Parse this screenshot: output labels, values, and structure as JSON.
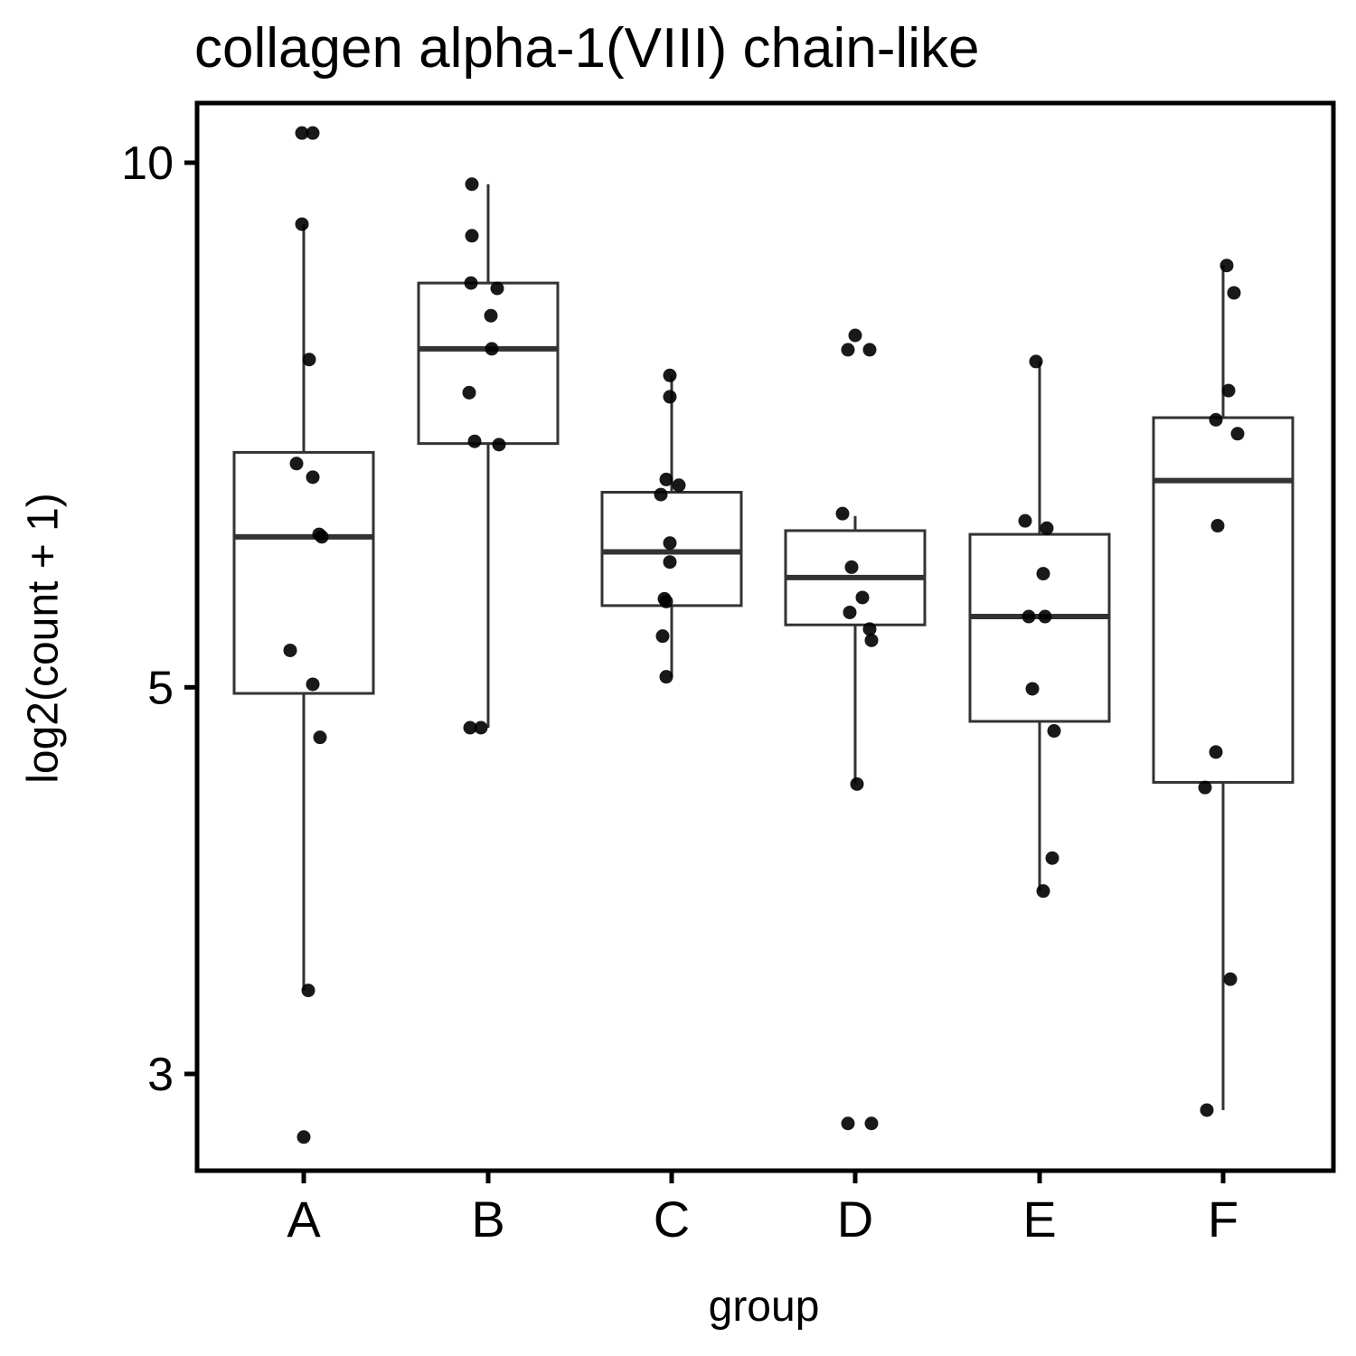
{
  "chart_data": {
    "type": "box",
    "title": "collagen alpha-1(VIII) chain-like",
    "xlabel": "group",
    "ylabel": "log2(count + 1)",
    "y_scale": "log",
    "ylim": [
      2.64,
      10.82
    ],
    "yticks": [
      3,
      5,
      10
    ],
    "grid": false,
    "legend": "none",
    "categories": [
      "A",
      "B",
      "C",
      "D",
      "E",
      "F"
    ],
    "boxes": [
      {
        "group": "A",
        "whisker_low": 3.35,
        "q1": 4.96,
        "median": 6.1,
        "q3": 6.82,
        "whisker_high": 9.22
      },
      {
        "group": "B",
        "whisker_low": 4.74,
        "q1": 6.9,
        "median": 7.82,
        "q3": 8.53,
        "whisker_high": 9.72
      },
      {
        "group": "C",
        "whisker_low": 5.07,
        "q1": 5.57,
        "median": 5.98,
        "q3": 6.47,
        "whisker_high": 7.55
      },
      {
        "group": "D",
        "whisker_low": 4.4,
        "q1": 5.43,
        "median": 5.78,
        "q3": 6.15,
        "whisker_high": 6.27
      },
      {
        "group": "E",
        "whisker_low": 3.82,
        "q1": 4.78,
        "median": 5.49,
        "q3": 6.12,
        "whisker_high": 7.69
      },
      {
        "group": "F",
        "whisker_low": 2.86,
        "q1": 4.41,
        "median": 6.57,
        "q3": 7.14,
        "whisker_high": 8.73
      }
    ],
    "points": [
      {
        "group": "A",
        "values": [
          10.4,
          10.4,
          9.22,
          7.71,
          6.72,
          6.6,
          6.12,
          6.1,
          5.25,
          5.02,
          4.68,
          3.35,
          2.76
        ]
      },
      {
        "group": "B",
        "values": [
          9.72,
          9.08,
          8.47,
          8.53,
          8.17,
          7.82,
          7.38,
          6.92,
          6.89,
          4.74,
          4.74
        ]
      },
      {
        "group": "C",
        "values": [
          7.55,
          7.34,
          6.58,
          6.53,
          6.45,
          6.05,
          5.9,
          5.62,
          5.6,
          5.35,
          5.07
        ]
      },
      {
        "group": "D",
        "values": [
          7.96,
          7.81,
          7.81,
          6.29,
          5.86,
          5.63,
          5.52,
          5.4,
          5.32,
          4.4,
          2.81,
          2.81
        ]
      },
      {
        "group": "E",
        "values": [
          7.69,
          6.23,
          6.17,
          5.81,
          5.49,
          5.49,
          4.99,
          4.72,
          3.99,
          3.82
        ]
      },
      {
        "group": "F",
        "values": [
          8.73,
          8.42,
          7.4,
          7.12,
          6.99,
          6.19,
          4.59,
          4.38,
          3.4,
          2.86
        ]
      }
    ]
  }
}
